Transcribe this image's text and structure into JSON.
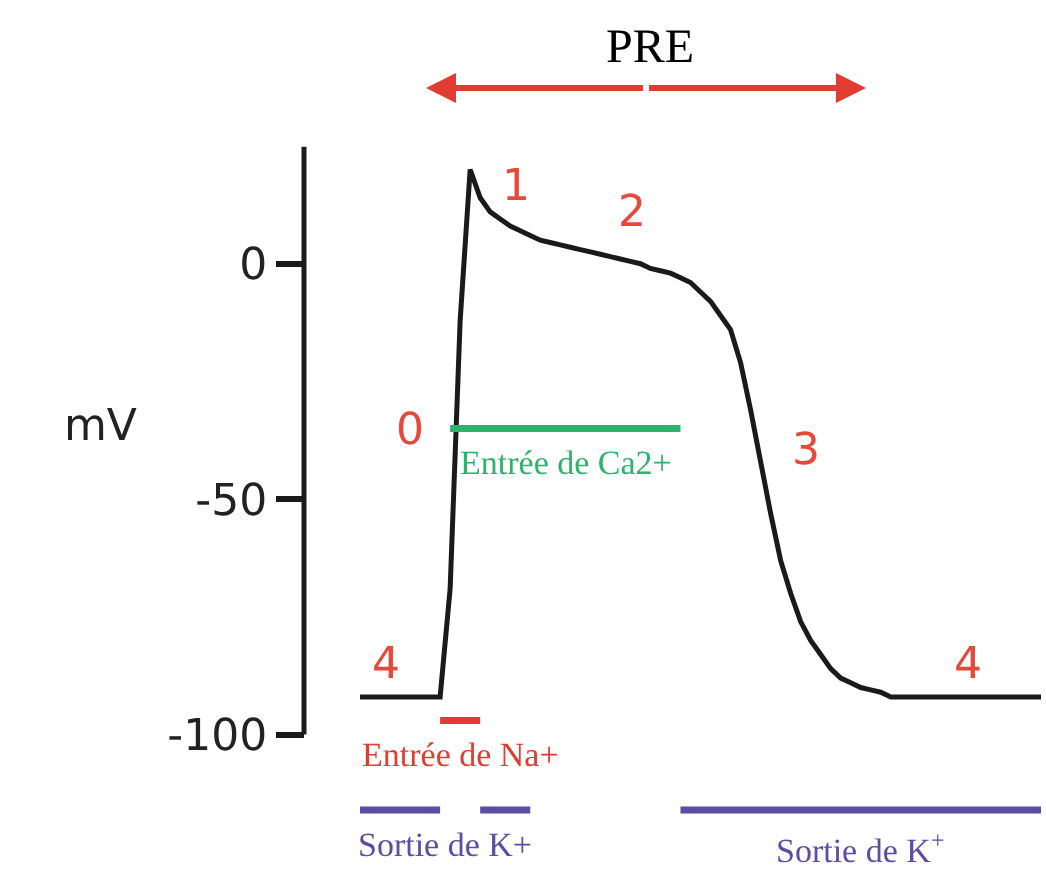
{
  "chart_data": {
    "type": "line",
    "ylabel": "mV",
    "tick_labels": "y",
    "grid": false,
    "legend": false,
    "marker": "none",
    "line_style": "solid",
    "ylim": [
      -133,
      56
    ],
    "yticks": [
      0,
      -50,
      -100
    ],
    "categories": [
      null,
      null,
      null,
      null,
      null,
      null,
      null,
      null,
      null,
      null,
      null,
      null,
      null,
      null,
      null,
      null,
      null,
      null,
      null,
      null,
      null,
      null,
      null,
      null,
      null,
      null,
      null,
      null,
      null,
      null,
      null,
      null,
      null,
      null,
      null,
      null,
      null,
      null,
      null,
      null,
      null,
      null,
      null,
      null,
      null,
      null,
      null,
      null,
      null,
      null,
      null,
      null,
      null,
      null,
      null,
      null,
      null,
      null,
      null,
      null,
      null,
      null,
      null,
      null,
      null,
      null,
      null,
      null,
      null
    ],
    "series": [
      {
        "color": "#1a1a1a",
        "values": [
          -92,
          -92,
          -92,
          -92,
          -92,
          -92,
          -92,
          -92,
          -92,
          -69,
          -12,
          20,
          14,
          11,
          9.5,
          8,
          7,
          6,
          5,
          4.5,
          4,
          3.5,
          3,
          2.5,
          2,
          1.5,
          1,
          0.5,
          0,
          -1,
          -1.5,
          -2,
          -3,
          -4,
          -6,
          -8,
          -11,
          -14,
          -21,
          -31,
          -42,
          -53,
          -63,
          -70,
          -76,
          -80,
          -83,
          -86,
          -88,
          -89,
          -90,
          -90.5,
          -91,
          -92,
          -92,
          -92,
          -92,
          -92,
          -92,
          -92,
          -92,
          -92,
          -92,
          -92,
          -92,
          -92,
          -92,
          -92,
          -92
        ],
        "line_style": "solid"
      },
      {
        "name": "Entrée de Ca2+",
        "color": "#2db36b",
        "values": [
          null,
          null,
          null,
          null,
          null,
          null,
          null,
          null,
          null,
          -35,
          -35,
          -35,
          -35,
          -35,
          -35,
          -35,
          -35,
          -35,
          -35,
          -35,
          -35,
          -35,
          -35,
          -35,
          -35,
          -35,
          -35,
          -35,
          -35,
          -35,
          -35,
          -35,
          -35,
          null,
          null,
          null,
          null,
          null,
          null,
          null,
          null,
          null,
          null,
          null,
          null,
          null,
          null,
          null,
          null,
          null,
          null,
          null,
          null,
          null,
          null,
          null,
          null,
          null,
          null,
          null,
          null,
          null,
          null,
          null,
          null,
          null,
          null,
          null,
          null
        ]
      },
      {
        "name": "Entrée de Na+",
        "color": "#e03c31",
        "values": [
          null,
          null,
          null,
          null,
          null,
          null,
          null,
          null,
          -97,
          -97,
          -97,
          -97,
          -97,
          null,
          null,
          null,
          null,
          null,
          null,
          null,
          null,
          null,
          null,
          null,
          null,
          null,
          null,
          null,
          null,
          null,
          null,
          null,
          null,
          null,
          null,
          null,
          null,
          null,
          null,
          null,
          null,
          null,
          null,
          null,
          null,
          null,
          null,
          null,
          null,
          null,
          null,
          null,
          null,
          null,
          null,
          null,
          null,
          null,
          null,
          null,
          null,
          null,
          null,
          null,
          null,
          null,
          null,
          null,
          null
        ]
      },
      {
        "name": "Sortie de K+",
        "color": "#5b4ca6",
        "values": [
          -116,
          -116,
          -116,
          -116,
          -116,
          -116,
          -116,
          -116,
          -116,
          null,
          null,
          null,
          -116,
          -116,
          -116,
          -116,
          -116,
          -116,
          null,
          null,
          null,
          null,
          null,
          null,
          null,
          null,
          null,
          null,
          null,
          null,
          null,
          null,
          null,
          null,
          null,
          null,
          null,
          null,
          null,
          null,
          null,
          null,
          null,
          null,
          null,
          null,
          null,
          null,
          null,
          null,
          null,
          null,
          null,
          null,
          null,
          null,
          null,
          null,
          null,
          null,
          null,
          null,
          null,
          null,
          null,
          null,
          null,
          null,
          null
        ]
      },
      {
        "name": "Sortie de K$^{+}$",
        "color": "#5b4ca6",
        "values": [
          null,
          null,
          null,
          null,
          null,
          null,
          null,
          null,
          null,
          null,
          null,
          null,
          null,
          null,
          null,
          null,
          null,
          null,
          null,
          null,
          null,
          null,
          null,
          null,
          null,
          null,
          null,
          null,
          null,
          null,
          null,
          null,
          -116,
          -116,
          -116,
          -116,
          -116,
          -116,
          -116,
          -116,
          -116,
          -116,
          -116,
          -116,
          -116,
          -116,
          -116,
          -116,
          -116,
          -116,
          -116,
          -116,
          -116,
          -116,
          -116,
          -116,
          -116,
          -116,
          -116,
          -116,
          -116,
          -116,
          -116,
          -116,
          -116,
          -116,
          -116,
          -116,
          -116
        ]
      }
    ],
    "annotations": [
      "PRE",
      "1",
      "2",
      "0",
      "3",
      "4",
      "4"
    ]
  }
}
